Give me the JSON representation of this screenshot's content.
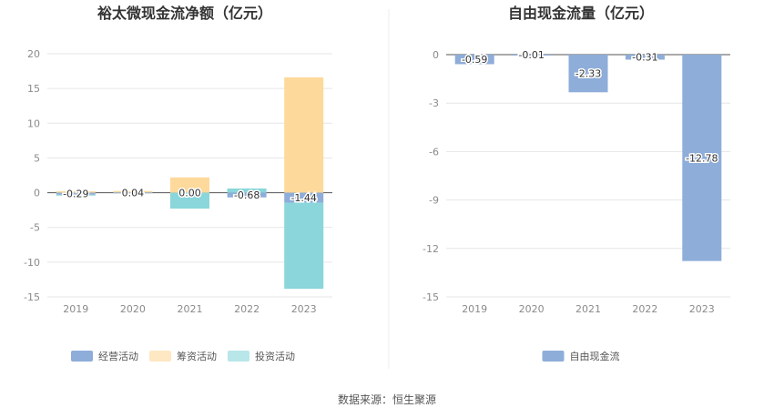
{
  "chart_data": [
    {
      "type": "bar",
      "title": "裕太微现金流净额（亿元）",
      "categories": [
        "2019",
        "2020",
        "2021",
        "2022",
        "2023"
      ],
      "ylim": [
        -15,
        20
      ],
      "yticks": [
        "20",
        "15",
        "10",
        "5",
        "0",
        "-5",
        "-10",
        "-15"
      ],
      "ytick_values": [
        20,
        15,
        10,
        5,
        0,
        -5,
        -10,
        -15
      ],
      "series": [
        {
          "name": "经营活动",
          "color": "#8eadd9",
          "values": [
            -0.29,
            0.04,
            0.0,
            -0.68,
            -1.44
          ]
        },
        {
          "name": "筹资活动",
          "color": "#fdd99b",
          "values": [
            0.2,
            0.2,
            2.2,
            0.0,
            16.6
          ]
        },
        {
          "name": "投资活动",
          "color": "#8ad6da",
          "values": [
            -0.1,
            0.0,
            -2.3,
            0.6,
            -12.4
          ]
        }
      ],
      "data_labels": [
        "-0.29",
        "0.04",
        "0.00",
        "-0.68",
        "-1.44"
      ],
      "grid": true,
      "legend": "bottom"
    },
    {
      "type": "bar",
      "title": "自由现金流量（亿元）",
      "categories": [
        "2019",
        "2020",
        "2021",
        "2022",
        "2023"
      ],
      "ylim": [
        -15,
        0
      ],
      "yticks": [
        "0",
        "-3",
        "-6",
        "-9",
        "-12",
        "-15"
      ],
      "ytick_values": [
        0,
        -3,
        -6,
        -9,
        -12,
        -15
      ],
      "series": [
        {
          "name": "自由现金流",
          "color": "#8eadd9",
          "values": [
            -0.59,
            -0.01,
            -2.33,
            -0.31,
            -12.78
          ]
        }
      ],
      "data_labels": [
        "-0.59",
        "-0.01",
        "-2.33",
        "-0.31",
        "-12.78"
      ],
      "grid": true,
      "legend": "bottom"
    }
  ],
  "footer": {
    "source": "数据来源：恒生聚源"
  }
}
